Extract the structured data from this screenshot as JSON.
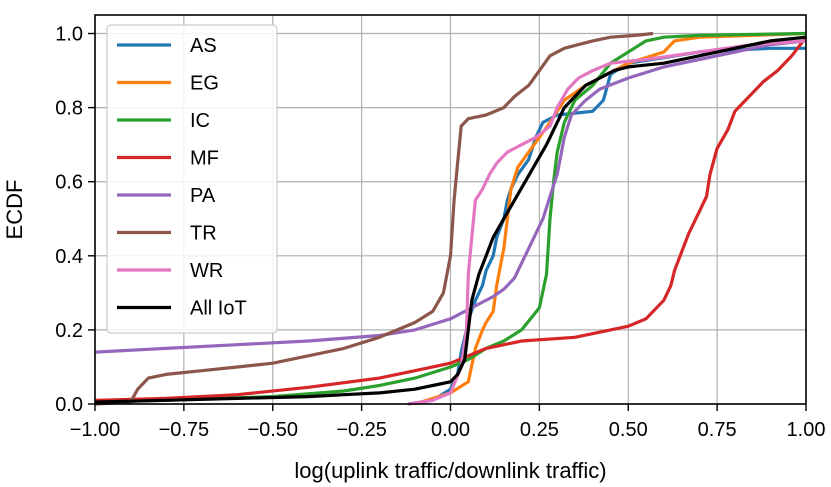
{
  "chart_data": {
    "type": "line",
    "title": "",
    "xlabel": "log(uplink traffic/downlink traffic)",
    "ylabel": "ECDF",
    "xlim": [
      -1.0,
      1.0
    ],
    "ylim": [
      0.0,
      1.05
    ],
    "grid": true,
    "legend_position": "top-left",
    "x_ticks": [
      -1.0,
      -0.75,
      -0.5,
      -0.25,
      0.0,
      0.25,
      0.5,
      0.75,
      1.0
    ],
    "x_tick_labels": [
      "−1.00",
      "−0.75",
      "−0.50",
      "−0.25",
      "0.00",
      "0.25",
      "0.50",
      "0.75",
      "1.00"
    ],
    "y_ticks": [
      0.0,
      0.2,
      0.4,
      0.6,
      0.8,
      1.0
    ],
    "y_tick_labels": [
      "0.0",
      "0.2",
      "0.4",
      "0.6",
      "0.8",
      "1.0"
    ],
    "series": [
      {
        "name": "AS",
        "color": "#1f77b4",
        "points": [
          [
            -0.12,
            0.0
          ],
          [
            -0.05,
            0.01
          ],
          [
            0.0,
            0.04
          ],
          [
            0.02,
            0.08
          ],
          [
            0.03,
            0.14
          ],
          [
            0.045,
            0.2
          ],
          [
            0.055,
            0.24
          ],
          [
            0.07,
            0.28
          ],
          [
            0.09,
            0.32
          ],
          [
            0.1,
            0.36
          ],
          [
            0.12,
            0.4
          ],
          [
            0.13,
            0.45
          ],
          [
            0.15,
            0.5
          ],
          [
            0.16,
            0.55
          ],
          [
            0.17,
            0.58
          ],
          [
            0.19,
            0.62
          ],
          [
            0.22,
            0.66
          ],
          [
            0.24,
            0.72
          ],
          [
            0.26,
            0.76
          ],
          [
            0.3,
            0.78
          ],
          [
            0.4,
            0.79
          ],
          [
            0.43,
            0.82
          ],
          [
            0.45,
            0.89
          ],
          [
            0.5,
            0.92
          ],
          [
            0.7,
            0.95
          ],
          [
            0.9,
            0.96
          ],
          [
            1.0,
            0.96
          ]
        ]
      },
      {
        "name": "EG",
        "color": "#ff7f0e",
        "points": [
          [
            -0.1,
            0.0
          ],
          [
            -0.05,
            0.015
          ],
          [
            0.0,
            0.03
          ],
          [
            0.05,
            0.06
          ],
          [
            0.07,
            0.15
          ],
          [
            0.09,
            0.2
          ],
          [
            0.1,
            0.22
          ],
          [
            0.12,
            0.25
          ],
          [
            0.13,
            0.32
          ],
          [
            0.15,
            0.42
          ],
          [
            0.16,
            0.5
          ],
          [
            0.17,
            0.58
          ],
          [
            0.19,
            0.64
          ],
          [
            0.22,
            0.68
          ],
          [
            0.25,
            0.72
          ],
          [
            0.28,
            0.76
          ],
          [
            0.32,
            0.82
          ],
          [
            0.38,
            0.86
          ],
          [
            0.42,
            0.88
          ],
          [
            0.5,
            0.92
          ],
          [
            0.6,
            0.95
          ],
          [
            0.63,
            0.98
          ],
          [
            0.7,
            0.99
          ],
          [
            1.0,
            1.0
          ]
        ]
      },
      {
        "name": "IC",
        "color": "#2ca02c",
        "points": [
          [
            -1.0,
            0.005
          ],
          [
            -0.8,
            0.01
          ],
          [
            -0.5,
            0.02
          ],
          [
            -0.3,
            0.035
          ],
          [
            -0.2,
            0.05
          ],
          [
            -0.1,
            0.07
          ],
          [
            0.0,
            0.1
          ],
          [
            0.05,
            0.12
          ],
          [
            0.1,
            0.15
          ],
          [
            0.15,
            0.17
          ],
          [
            0.2,
            0.2
          ],
          [
            0.25,
            0.26
          ],
          [
            0.27,
            0.35
          ],
          [
            0.28,
            0.5
          ],
          [
            0.29,
            0.6
          ],
          [
            0.3,
            0.68
          ],
          [
            0.32,
            0.76
          ],
          [
            0.35,
            0.82
          ],
          [
            0.4,
            0.86
          ],
          [
            0.45,
            0.92
          ],
          [
            0.5,
            0.95
          ],
          [
            0.55,
            0.98
          ],
          [
            0.6,
            0.99
          ],
          [
            0.7,
            0.995
          ],
          [
            1.0,
            1.0
          ]
        ]
      },
      {
        "name": "MF",
        "color": "#d62728",
        "points": [
          [
            -1.0,
            0.01
          ],
          [
            -0.8,
            0.015
          ],
          [
            -0.6,
            0.025
          ],
          [
            -0.4,
            0.045
          ],
          [
            -0.2,
            0.07
          ],
          [
            -0.1,
            0.09
          ],
          [
            0.0,
            0.11
          ],
          [
            0.05,
            0.13
          ],
          [
            0.1,
            0.15
          ],
          [
            0.2,
            0.17
          ],
          [
            0.35,
            0.18
          ],
          [
            0.45,
            0.2
          ],
          [
            0.5,
            0.21
          ],
          [
            0.55,
            0.23
          ],
          [
            0.6,
            0.28
          ],
          [
            0.62,
            0.32
          ],
          [
            0.63,
            0.36
          ],
          [
            0.65,
            0.41
          ],
          [
            0.67,
            0.46
          ],
          [
            0.7,
            0.52
          ],
          [
            0.72,
            0.56
          ],
          [
            0.73,
            0.62
          ],
          [
            0.75,
            0.69
          ],
          [
            0.78,
            0.74
          ],
          [
            0.8,
            0.79
          ],
          [
            0.82,
            0.81
          ],
          [
            0.85,
            0.84
          ],
          [
            0.88,
            0.87
          ],
          [
            0.92,
            0.9
          ],
          [
            0.96,
            0.94
          ],
          [
            1.0,
            0.99
          ]
        ]
      },
      {
        "name": "PA",
        "color": "#9467bd",
        "points": [
          [
            -1.0,
            0.14
          ],
          [
            -0.8,
            0.15
          ],
          [
            -0.6,
            0.16
          ],
          [
            -0.4,
            0.17
          ],
          [
            -0.2,
            0.185
          ],
          [
            -0.1,
            0.2
          ],
          [
            0.0,
            0.23
          ],
          [
            0.04,
            0.25
          ],
          [
            0.08,
            0.27
          ],
          [
            0.12,
            0.29
          ],
          [
            0.15,
            0.31
          ],
          [
            0.18,
            0.34
          ],
          [
            0.2,
            0.38
          ],
          [
            0.22,
            0.42
          ],
          [
            0.24,
            0.46
          ],
          [
            0.26,
            0.5
          ],
          [
            0.28,
            0.56
          ],
          [
            0.3,
            0.62
          ],
          [
            0.32,
            0.72
          ],
          [
            0.34,
            0.78
          ],
          [
            0.38,
            0.82
          ],
          [
            0.42,
            0.85
          ],
          [
            0.5,
            0.88
          ],
          [
            0.6,
            0.91
          ],
          [
            0.7,
            0.93
          ],
          [
            0.8,
            0.95
          ],
          [
            0.9,
            0.97
          ],
          [
            1.0,
            0.98
          ]
        ]
      },
      {
        "name": "TR",
        "color": "#8c564b",
        "points": [
          [
            -1.0,
            0.0
          ],
          [
            -0.9,
            0.005
          ],
          [
            -0.88,
            0.04
          ],
          [
            -0.85,
            0.07
          ],
          [
            -0.8,
            0.08
          ],
          [
            -0.7,
            0.09
          ],
          [
            -0.6,
            0.1
          ],
          [
            -0.5,
            0.11
          ],
          [
            -0.4,
            0.13
          ],
          [
            -0.3,
            0.15
          ],
          [
            -0.2,
            0.18
          ],
          [
            -0.1,
            0.22
          ],
          [
            -0.05,
            0.25
          ],
          [
            -0.02,
            0.3
          ],
          [
            0.0,
            0.4
          ],
          [
            0.01,
            0.55
          ],
          [
            0.02,
            0.65
          ],
          [
            0.03,
            0.75
          ],
          [
            0.05,
            0.77
          ],
          [
            0.1,
            0.78
          ],
          [
            0.15,
            0.8
          ],
          [
            0.18,
            0.83
          ],
          [
            0.22,
            0.86
          ],
          [
            0.25,
            0.9
          ],
          [
            0.28,
            0.94
          ],
          [
            0.32,
            0.96
          ],
          [
            0.36,
            0.97
          ],
          [
            0.4,
            0.98
          ],
          [
            0.45,
            0.99
          ],
          [
            0.52,
            0.995
          ],
          [
            0.57,
            1.0
          ]
        ]
      },
      {
        "name": "WR",
        "color": "#e377c2",
        "points": [
          [
            -0.12,
            0.0
          ],
          [
            -0.05,
            0.01
          ],
          [
            0.0,
            0.03
          ],
          [
            0.03,
            0.1
          ],
          [
            0.045,
            0.2
          ],
          [
            0.05,
            0.35
          ],
          [
            0.06,
            0.45
          ],
          [
            0.07,
            0.55
          ],
          [
            0.09,
            0.58
          ],
          [
            0.1,
            0.6
          ],
          [
            0.11,
            0.62
          ],
          [
            0.13,
            0.65
          ],
          [
            0.16,
            0.68
          ],
          [
            0.2,
            0.7
          ],
          [
            0.24,
            0.72
          ],
          [
            0.28,
            0.75
          ],
          [
            0.3,
            0.8
          ],
          [
            0.33,
            0.85
          ],
          [
            0.36,
            0.88
          ],
          [
            0.4,
            0.9
          ],
          [
            0.45,
            0.92
          ],
          [
            0.55,
            0.93
          ],
          [
            0.7,
            0.95
          ],
          [
            0.85,
            0.97
          ],
          [
            1.0,
            0.98
          ]
        ]
      },
      {
        "name": "All IoT",
        "color": "#000000",
        "points": [
          [
            -1.0,
            0.005
          ],
          [
            -0.8,
            0.01
          ],
          [
            -0.6,
            0.015
          ],
          [
            -0.4,
            0.02
          ],
          [
            -0.3,
            0.025
          ],
          [
            -0.2,
            0.03
          ],
          [
            -0.1,
            0.04
          ],
          [
            -0.05,
            0.05
          ],
          [
            0.0,
            0.06
          ],
          [
            0.02,
            0.08
          ],
          [
            0.04,
            0.12
          ],
          [
            0.05,
            0.2
          ],
          [
            0.06,
            0.28
          ],
          [
            0.08,
            0.35
          ],
          [
            0.1,
            0.4
          ],
          [
            0.12,
            0.45
          ],
          [
            0.15,
            0.5
          ],
          [
            0.18,
            0.55
          ],
          [
            0.21,
            0.6
          ],
          [
            0.24,
            0.65
          ],
          [
            0.27,
            0.7
          ],
          [
            0.3,
            0.76
          ],
          [
            0.32,
            0.8
          ],
          [
            0.35,
            0.83
          ],
          [
            0.38,
            0.86
          ],
          [
            0.42,
            0.88
          ],
          [
            0.46,
            0.9
          ],
          [
            0.5,
            0.91
          ],
          [
            0.6,
            0.92
          ],
          [
            0.7,
            0.94
          ],
          [
            0.8,
            0.96
          ],
          [
            0.9,
            0.98
          ],
          [
            1.0,
            0.99
          ]
        ]
      }
    ]
  }
}
